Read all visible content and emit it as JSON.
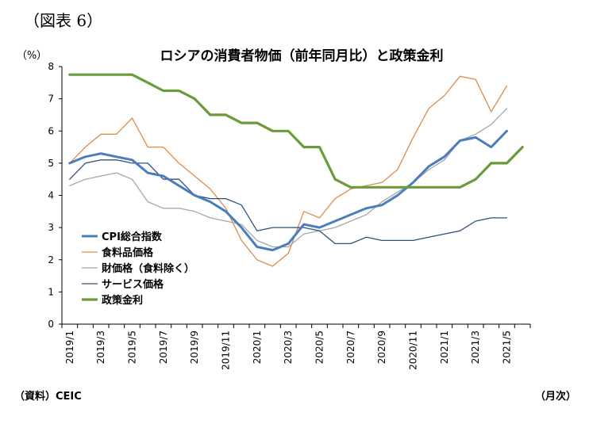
{
  "figure_label": "（図表 6）",
  "source_note": "（資料）CEIC",
  "x_unit_label": "（月次）",
  "chart_data": {
    "type": "line",
    "title": "ロシアの消費者物価（前年同月比）と政策金利",
    "ylabel": "（%）",
    "xlabel": "",
    "ylim": [
      0,
      8
    ],
    "yticks": [
      0,
      1,
      2,
      3,
      4,
      5,
      6,
      7,
      8
    ],
    "grid": false,
    "legend_position": "bottom-left",
    "x": [
      "2019/1",
      "2019/2",
      "2019/3",
      "2019/4",
      "2019/5",
      "2019/6",
      "2019/7",
      "2019/8",
      "2019/9",
      "2019/10",
      "2019/11",
      "2019/12",
      "2020/1",
      "2020/2",
      "2020/3",
      "2020/4",
      "2020/5",
      "2020/6",
      "2020/7",
      "2020/8",
      "2020/9",
      "2020/10",
      "2020/11",
      "2020/12",
      "2021/1",
      "2021/2",
      "2021/3",
      "2021/4",
      "2021/5",
      "2021/6"
    ],
    "x_tick_labels": [
      "2019/1",
      "2019/3",
      "2019/5",
      "2019/7",
      "2019/9",
      "2019/11",
      "2020/1",
      "2020/3",
      "2020/5",
      "2020/7",
      "2020/9",
      "2020/11",
      "2021/1",
      "2021/3",
      "2021/5"
    ],
    "series": [
      {
        "name": "CPI総合指数",
        "color": "#4a7ebb",
        "width": 3,
        "values": [
          5.0,
          5.2,
          5.3,
          5.2,
          5.1,
          4.7,
          4.6,
          4.3,
          4.0,
          3.8,
          3.5,
          3.0,
          2.4,
          2.3,
          2.5,
          3.1,
          3.0,
          3.2,
          3.4,
          3.6,
          3.7,
          4.0,
          4.4,
          4.9,
          5.2,
          5.7,
          5.8,
          5.5,
          6.0,
          null
        ]
      },
      {
        "name": "食料品価格",
        "color": "#d98c4c",
        "width": 1.3,
        "values": [
          5.0,
          5.5,
          5.9,
          5.9,
          6.4,
          5.5,
          5.5,
          5.0,
          4.6,
          4.2,
          3.6,
          2.6,
          2.0,
          1.8,
          2.2,
          3.5,
          3.3,
          3.9,
          4.2,
          4.3,
          4.4,
          4.8,
          5.8,
          6.7,
          7.1,
          7.7,
          7.6,
          6.6,
          7.4,
          null
        ]
      },
      {
        "name": "財価格（食料除く）",
        "color": "#a6a6a6",
        "width": 1.3,
        "values": [
          4.3,
          4.5,
          4.6,
          4.7,
          4.5,
          3.8,
          3.6,
          3.6,
          3.5,
          3.3,
          3.2,
          3.1,
          2.6,
          2.4,
          2.4,
          2.8,
          2.9,
          3.0,
          3.2,
          3.4,
          3.8,
          4.1,
          4.4,
          4.8,
          5.1,
          5.7,
          5.9,
          6.2,
          6.7,
          null
        ]
      },
      {
        "name": "サービス価格",
        "color": "#2f4f7f",
        "width": 1.3,
        "values": [
          4.5,
          5.0,
          5.1,
          5.1,
          5.0,
          5.0,
          4.5,
          4.5,
          4.0,
          3.9,
          3.9,
          3.7,
          2.9,
          3.0,
          3.0,
          3.0,
          2.9,
          2.5,
          2.5,
          2.7,
          2.6,
          2.6,
          2.6,
          2.7,
          2.8,
          2.9,
          3.2,
          3.3,
          3.3,
          null
        ]
      },
      {
        "name": "政策金利",
        "color": "#6a9a3a",
        "width": 3.2,
        "values": [
          7.75,
          7.75,
          7.75,
          7.75,
          7.75,
          7.5,
          7.25,
          7.25,
          7.0,
          6.5,
          6.5,
          6.25,
          6.25,
          6.0,
          6.0,
          5.5,
          5.5,
          4.5,
          4.25,
          4.25,
          4.25,
          4.25,
          4.25,
          4.25,
          4.25,
          4.25,
          4.5,
          5.0,
          5.0,
          5.5
        ]
      }
    ]
  }
}
